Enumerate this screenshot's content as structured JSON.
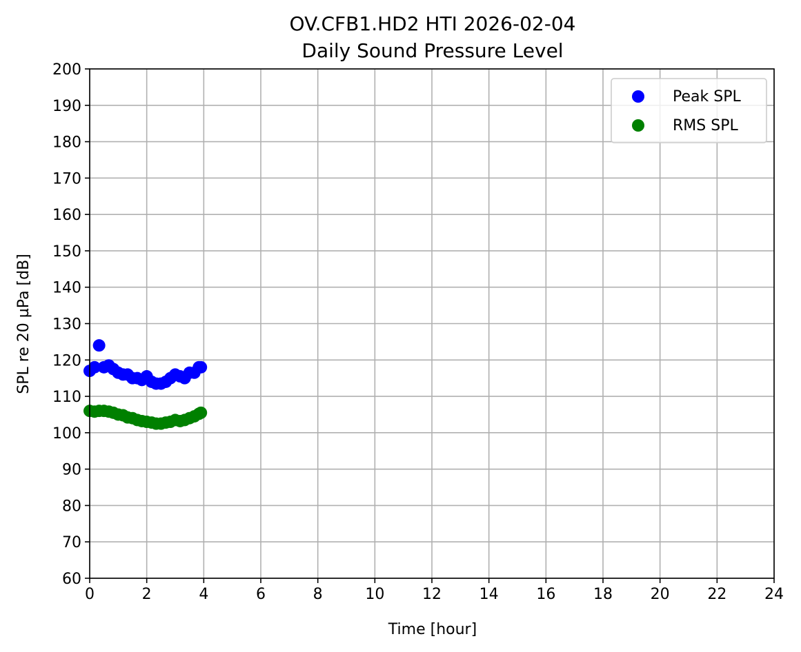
{
  "chart_data": {
    "type": "scatter",
    "title": "OV.CFB1.HD2 HTI 2026-02-04",
    "subtitle": "Daily Sound Pressure Level",
    "xlabel": "Time [hour]",
    "ylabel": "SPL re 20 µPa [dB]",
    "xlim": [
      0,
      24
    ],
    "ylim": [
      60,
      200
    ],
    "xticks": [
      0,
      2,
      4,
      6,
      8,
      10,
      12,
      14,
      16,
      18,
      20,
      22,
      24
    ],
    "yticks": [
      60,
      70,
      80,
      90,
      100,
      110,
      120,
      130,
      140,
      150,
      160,
      170,
      180,
      190,
      200
    ],
    "grid": true,
    "legend_position": "top-right",
    "series": [
      {
        "name": "Peak SPL",
        "color": "#0000ff",
        "x": [
          0.0,
          0.17,
          0.33,
          0.5,
          0.67,
          0.83,
          1.0,
          1.17,
          1.33,
          1.5,
          1.67,
          1.83,
          2.0,
          2.17,
          2.33,
          2.5,
          2.67,
          2.83,
          3.0,
          3.17,
          3.33,
          3.5,
          3.67,
          3.83,
          3.9
        ],
        "y": [
          117.0,
          118.0,
          124.0,
          118.0,
          118.5,
          117.5,
          116.5,
          116.0,
          116.0,
          115.0,
          115.0,
          114.5,
          115.5,
          114.0,
          113.5,
          113.5,
          114.0,
          115.0,
          116.0,
          115.5,
          115.0,
          116.5,
          116.5,
          118.0,
          118.0
        ]
      },
      {
        "name": "RMS SPL",
        "color": "#008000",
        "x": [
          0.0,
          0.17,
          0.33,
          0.5,
          0.67,
          0.83,
          1.0,
          1.17,
          1.33,
          1.5,
          1.67,
          1.83,
          2.0,
          2.17,
          2.33,
          2.5,
          2.67,
          2.83,
          3.0,
          3.17,
          3.33,
          3.5,
          3.67,
          3.83,
          3.9
        ],
        "y": [
          106.0,
          105.8,
          106.0,
          106.0,
          105.8,
          105.5,
          105.0,
          104.8,
          104.2,
          104.0,
          103.5,
          103.2,
          103.0,
          102.8,
          102.5,
          102.5,
          102.8,
          103.0,
          103.5,
          103.2,
          103.5,
          104.0,
          104.5,
          105.2,
          105.5
        ]
      }
    ]
  }
}
